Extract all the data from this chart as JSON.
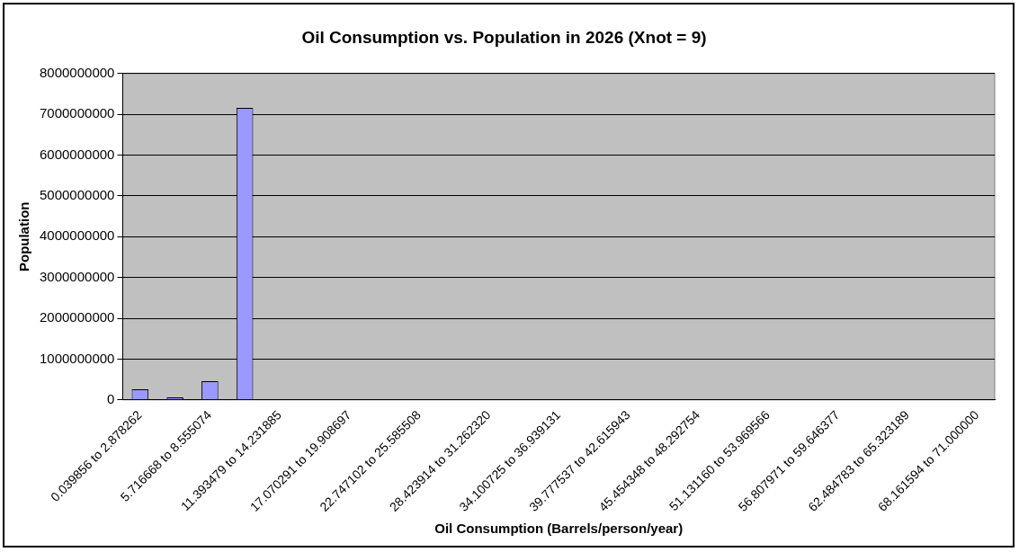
{
  "chart_data": {
    "type": "bar",
    "title": "Oil Consumption vs. Population in 2026 (Xnot = 9)",
    "xlabel": "Oil Consumption (Barrels/person/year)",
    "ylabel": "Population",
    "categories": [
      "0.039856 to 2.878262",
      null,
      "5.716668 to 8.555074",
      null,
      "11.393479 to 14.231885",
      null,
      "17.070291 to 19.908697",
      null,
      "22.747102 to 25.585508",
      null,
      "28.423914 to 31.262320",
      null,
      "34.100725 to 36.939131",
      null,
      "39.777537 to 42.615943",
      null,
      "45.454348 to 48.292754",
      null,
      "51.131160 to 53.969566",
      null,
      "56.807971 to 59.646377",
      null,
      "62.484783 to 65.323189",
      null,
      "68.161594 to 71.000000"
    ],
    "values": [
      260000000,
      60000000,
      460000000,
      7160000000,
      0,
      0,
      0,
      0,
      0,
      0,
      0,
      0,
      0,
      0,
      0,
      0,
      0,
      0,
      0,
      0,
      0,
      0,
      0,
      0,
      0
    ],
    "color": "#9999ff",
    "ylim": [
      0,
      8000000000
    ],
    "yticks": [
      0,
      1000000000,
      2000000000,
      3000000000,
      4000000000,
      5000000000,
      6000000000,
      7000000000,
      8000000000
    ],
    "grid": "y",
    "legend": false
  }
}
